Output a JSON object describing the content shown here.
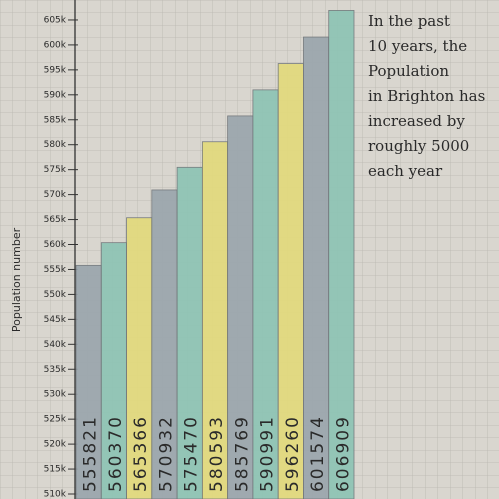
{
  "chart_data": {
    "type": "bar",
    "y_label": "Population number",
    "annotation_lines": [
      "In the past",
      "10 years, the",
      "Population",
      "in Brighton has",
      "increased by",
      "roughly 5000",
      "each year"
    ],
    "values": [
      555821,
      560370,
      565366,
      570932,
      575470,
      580593,
      585769,
      590991,
      596260,
      601574,
      606909
    ],
    "colors": [
      "#9ba6ad",
      "#8ec4b4",
      "#e2da7c",
      "#9ba6ad",
      "#8ec4b4",
      "#e2da7c",
      "#9ba6ad",
      "#8ec4b4",
      "#e2da7c",
      "#9ba6ad",
      "#8ec4b4"
    ],
    "ylim": [
      509000,
      609000
    ],
    "yticks": [
      {
        "value": 510000,
        "label": "510k"
      },
      {
        "value": 515000,
        "label": "515k"
      },
      {
        "value": 520000,
        "label": "520k"
      },
      {
        "value": 525000,
        "label": "525k"
      },
      {
        "value": 530000,
        "label": "530k"
      },
      {
        "value": 535000,
        "label": "535k"
      },
      {
        "value": 540000,
        "label": "540k"
      },
      {
        "value": 545000,
        "label": "545k"
      },
      {
        "value": 550000,
        "label": "550k"
      },
      {
        "value": 555000,
        "label": "555k"
      },
      {
        "value": 560000,
        "label": "560k"
      },
      {
        "value": 565000,
        "label": "565k"
      },
      {
        "value": 570000,
        "label": "570k"
      },
      {
        "value": 575000,
        "label": "575k"
      },
      {
        "value": 580000,
        "label": "580k"
      },
      {
        "value": 585000,
        "label": "585k"
      },
      {
        "value": 590000,
        "label": "590k"
      },
      {
        "value": 595000,
        "label": "595k"
      },
      {
        "value": 600000,
        "label": "600k"
      },
      {
        "value": 605000,
        "label": "605k"
      }
    ]
  }
}
